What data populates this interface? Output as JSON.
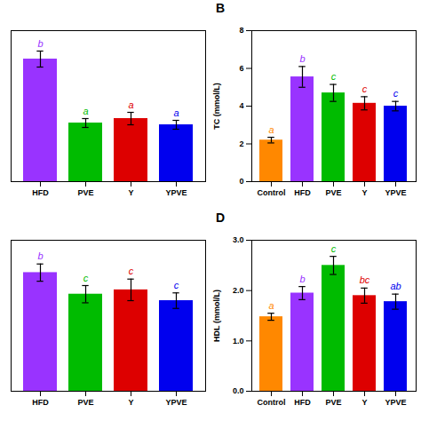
{
  "chart_data": [
    {
      "type": "bar",
      "categories": [
        "HFD",
        "PVE",
        "Y",
        "YPVE"
      ],
      "values": [
        6.9,
        3.3,
        3.55,
        3.2
      ],
      "errors": [
        0.45,
        0.25,
        0.35,
        0.25
      ],
      "letters": [
        "b",
        "a",
        "a",
        "a"
      ],
      "colors": [
        "#9933ff",
        "#00bb00",
        "#dd0000",
        "#0000ee"
      ],
      "ylim": [
        0,
        8.5
      ],
      "tick_labels": "x"
    },
    {
      "type": "bar",
      "title": "B",
      "categories": [
        "Control",
        "HFD",
        "PVE",
        "Y",
        "YPVE"
      ],
      "values": [
        2.2,
        5.55,
        4.7,
        4.15,
        4.0
      ],
      "errors": [
        0.15,
        0.55,
        0.45,
        0.35,
        0.25
      ],
      "letters": [
        "a",
        "b",
        "c",
        "c",
        "c"
      ],
      "colors": [
        "#ff8800",
        "#9933ff",
        "#00bb00",
        "#dd0000",
        "#0000ee"
      ],
      "ylabel": "TC (mmol/L)",
      "ylim": [
        0,
        8
      ],
      "yticks": [
        0,
        2,
        4,
        6,
        8
      ]
    },
    {
      "type": "bar",
      "categories": [
        "HFD",
        "PVE",
        "Y",
        "YPVE"
      ],
      "values": [
        2.75,
        2.25,
        2.35,
        2.1
      ],
      "errors": [
        0.2,
        0.2,
        0.25,
        0.18
      ],
      "letters": [
        "b",
        "c",
        "c",
        "c"
      ],
      "colors": [
        "#9933ff",
        "#00bb00",
        "#dd0000",
        "#0000ee"
      ],
      "ylim": [
        0,
        3.5
      ],
      "tick_labels": "x"
    },
    {
      "type": "bar",
      "title": "D",
      "categories": [
        "Control",
        "HFD",
        "PVE",
        "Y",
        "YPVE"
      ],
      "values": [
        1.48,
        1.95,
        2.5,
        1.9,
        1.78
      ],
      "errors": [
        0.07,
        0.13,
        0.18,
        0.15,
        0.15
      ],
      "letters": [
        "a",
        "b",
        "c",
        "bc",
        "ab"
      ],
      "colors": [
        "#ff8800",
        "#9933ff",
        "#00bb00",
        "#dd0000",
        "#0000ee"
      ],
      "ylabel": "HDL (mmol/L)",
      "ylim": [
        0,
        3
      ],
      "yticks": [
        0,
        1,
        2,
        3
      ]
    }
  ]
}
